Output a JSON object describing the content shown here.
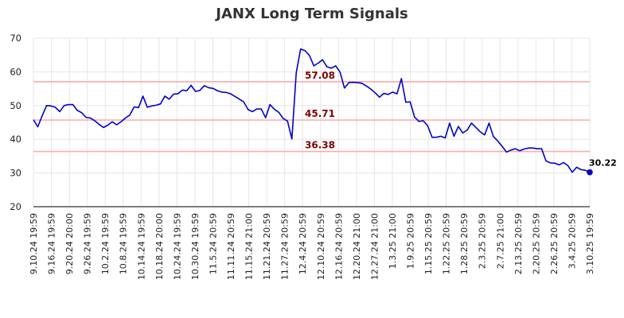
{
  "chart_data": {
    "type": "line",
    "title": "JANX Long Term Signals",
    "xlabel": "",
    "ylabel": "",
    "ylim": [
      20,
      70
    ],
    "yticks": [
      20,
      30,
      40,
      50,
      60,
      70
    ],
    "grid": true,
    "line_color": "#0000cc",
    "level_color": "#ffaaaa",
    "level_label_color": "#800000",
    "x_tick_labels": [
      "9.10.24 19:59",
      "9.16.24 19:59",
      "9.20.24 20:00",
      "9.26.24 19:59",
      "10.2.24 19:59",
      "10.8.24 19:59",
      "10.14.24 19:59",
      "10.18.24 20:00",
      "10.24.24 19:59",
      "10.30.24 19:59",
      "11.5.24 20:59",
      "11.11.24 20:59",
      "11.15.24 21:00",
      "11.21.24 20:59",
      "11.27.24 20:59",
      "12.4.24 20:59",
      "12.10.24 20:59",
      "12.16.24 20:59",
      "12.20.24 21:00",
      "12.27.24 21:00",
      "1.3.25 21:00",
      "1.9.25 20:59",
      "1.15.25 20:59",
      "1.22.25 20:59",
      "1.28.25 20:59",
      "2.3.25 20:59",
      "2.7.25 21:00",
      "2.13.25 20:59",
      "2.20.25 20:59",
      "2.26.25 20:59",
      "3.4.25 20:59",
      "3.10.25 19:59"
    ],
    "levels": [
      {
        "value": 57.08,
        "label": "57.08"
      },
      {
        "value": 45.71,
        "label": "45.71"
      },
      {
        "value": 36.38,
        "label": "36.38"
      }
    ],
    "series": [
      {
        "values": [
          45.8,
          43.7,
          47.0,
          50.0,
          49.9,
          49.5,
          48.2,
          50.0,
          50.3,
          50.3,
          48.6,
          47.9,
          46.5,
          46.3,
          45.5,
          44.4,
          43.5,
          44.2,
          45.2,
          44.3,
          45.2,
          46.3,
          47.2,
          49.6,
          49.4,
          52.8,
          49.5,
          49.9,
          50.1,
          50.5,
          52.8,
          51.9,
          53.4,
          53.5,
          54.6,
          54.4,
          56.0,
          54.2,
          54.5,
          55.9,
          55.3,
          55.1,
          54.4,
          54.0,
          53.9,
          53.5,
          52.7,
          51.9,
          51.1,
          48.8,
          48.2,
          49.0,
          49.0,
          46.4,
          50.3,
          48.9,
          48.0,
          46.2,
          45.4,
          40.1,
          59.8,
          66.8,
          66.3,
          64.9,
          61.8,
          62.6,
          63.6,
          61.5,
          61.1,
          61.8,
          59.9,
          55.2,
          56.8,
          56.9,
          56.8,
          56.6,
          55.8,
          54.9,
          53.8,
          52.5,
          53.6,
          53.3,
          54.0,
          53.5,
          58.0,
          51.0,
          51.1,
          46.6,
          45.3,
          45.5,
          44.0,
          40.6,
          40.6,
          40.9,
          40.4,
          44.8,
          40.9,
          43.8,
          41.9,
          42.7,
          44.8,
          43.5,
          42.2,
          41.3,
          44.8,
          40.8,
          39.5,
          37.9,
          36.2,
          36.8,
          37.2,
          36.6,
          37.1,
          37.4,
          37.4,
          37.2,
          37.2,
          33.6,
          33.0,
          32.9,
          32.4,
          33.1,
          32.2,
          30.2,
          31.7,
          31.0,
          30.8,
          30.22
        ]
      }
    ],
    "last_value": 30.22,
    "last_label": "30.22"
  }
}
